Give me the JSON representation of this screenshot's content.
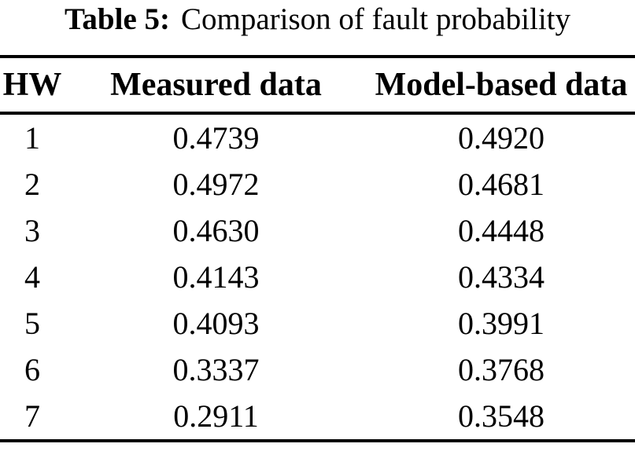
{
  "caption": {
    "label": "Table 5:",
    "text": "Comparison of fault probability"
  },
  "table": {
    "columns": [
      "HW",
      "Measured data",
      "Model-based data"
    ],
    "rows": [
      {
        "hw": "1",
        "measured": "0.4739",
        "model": "0.4920"
      },
      {
        "hw": "2",
        "measured": "0.4972",
        "model": "0.4681"
      },
      {
        "hw": "3",
        "measured": "0.4630",
        "model": "0.4448"
      },
      {
        "hw": "4",
        "measured": "0.4143",
        "model": "0.4334"
      },
      {
        "hw": "5",
        "measured": "0.4093",
        "model": "0.3991"
      },
      {
        "hw": "6",
        "measured": "0.3337",
        "model": "0.3768"
      },
      {
        "hw": "7",
        "measured": "0.2911",
        "model": "0.3548"
      }
    ]
  },
  "colors": {
    "text": "#000000",
    "background": "#ffffff",
    "rule": "#000000"
  }
}
